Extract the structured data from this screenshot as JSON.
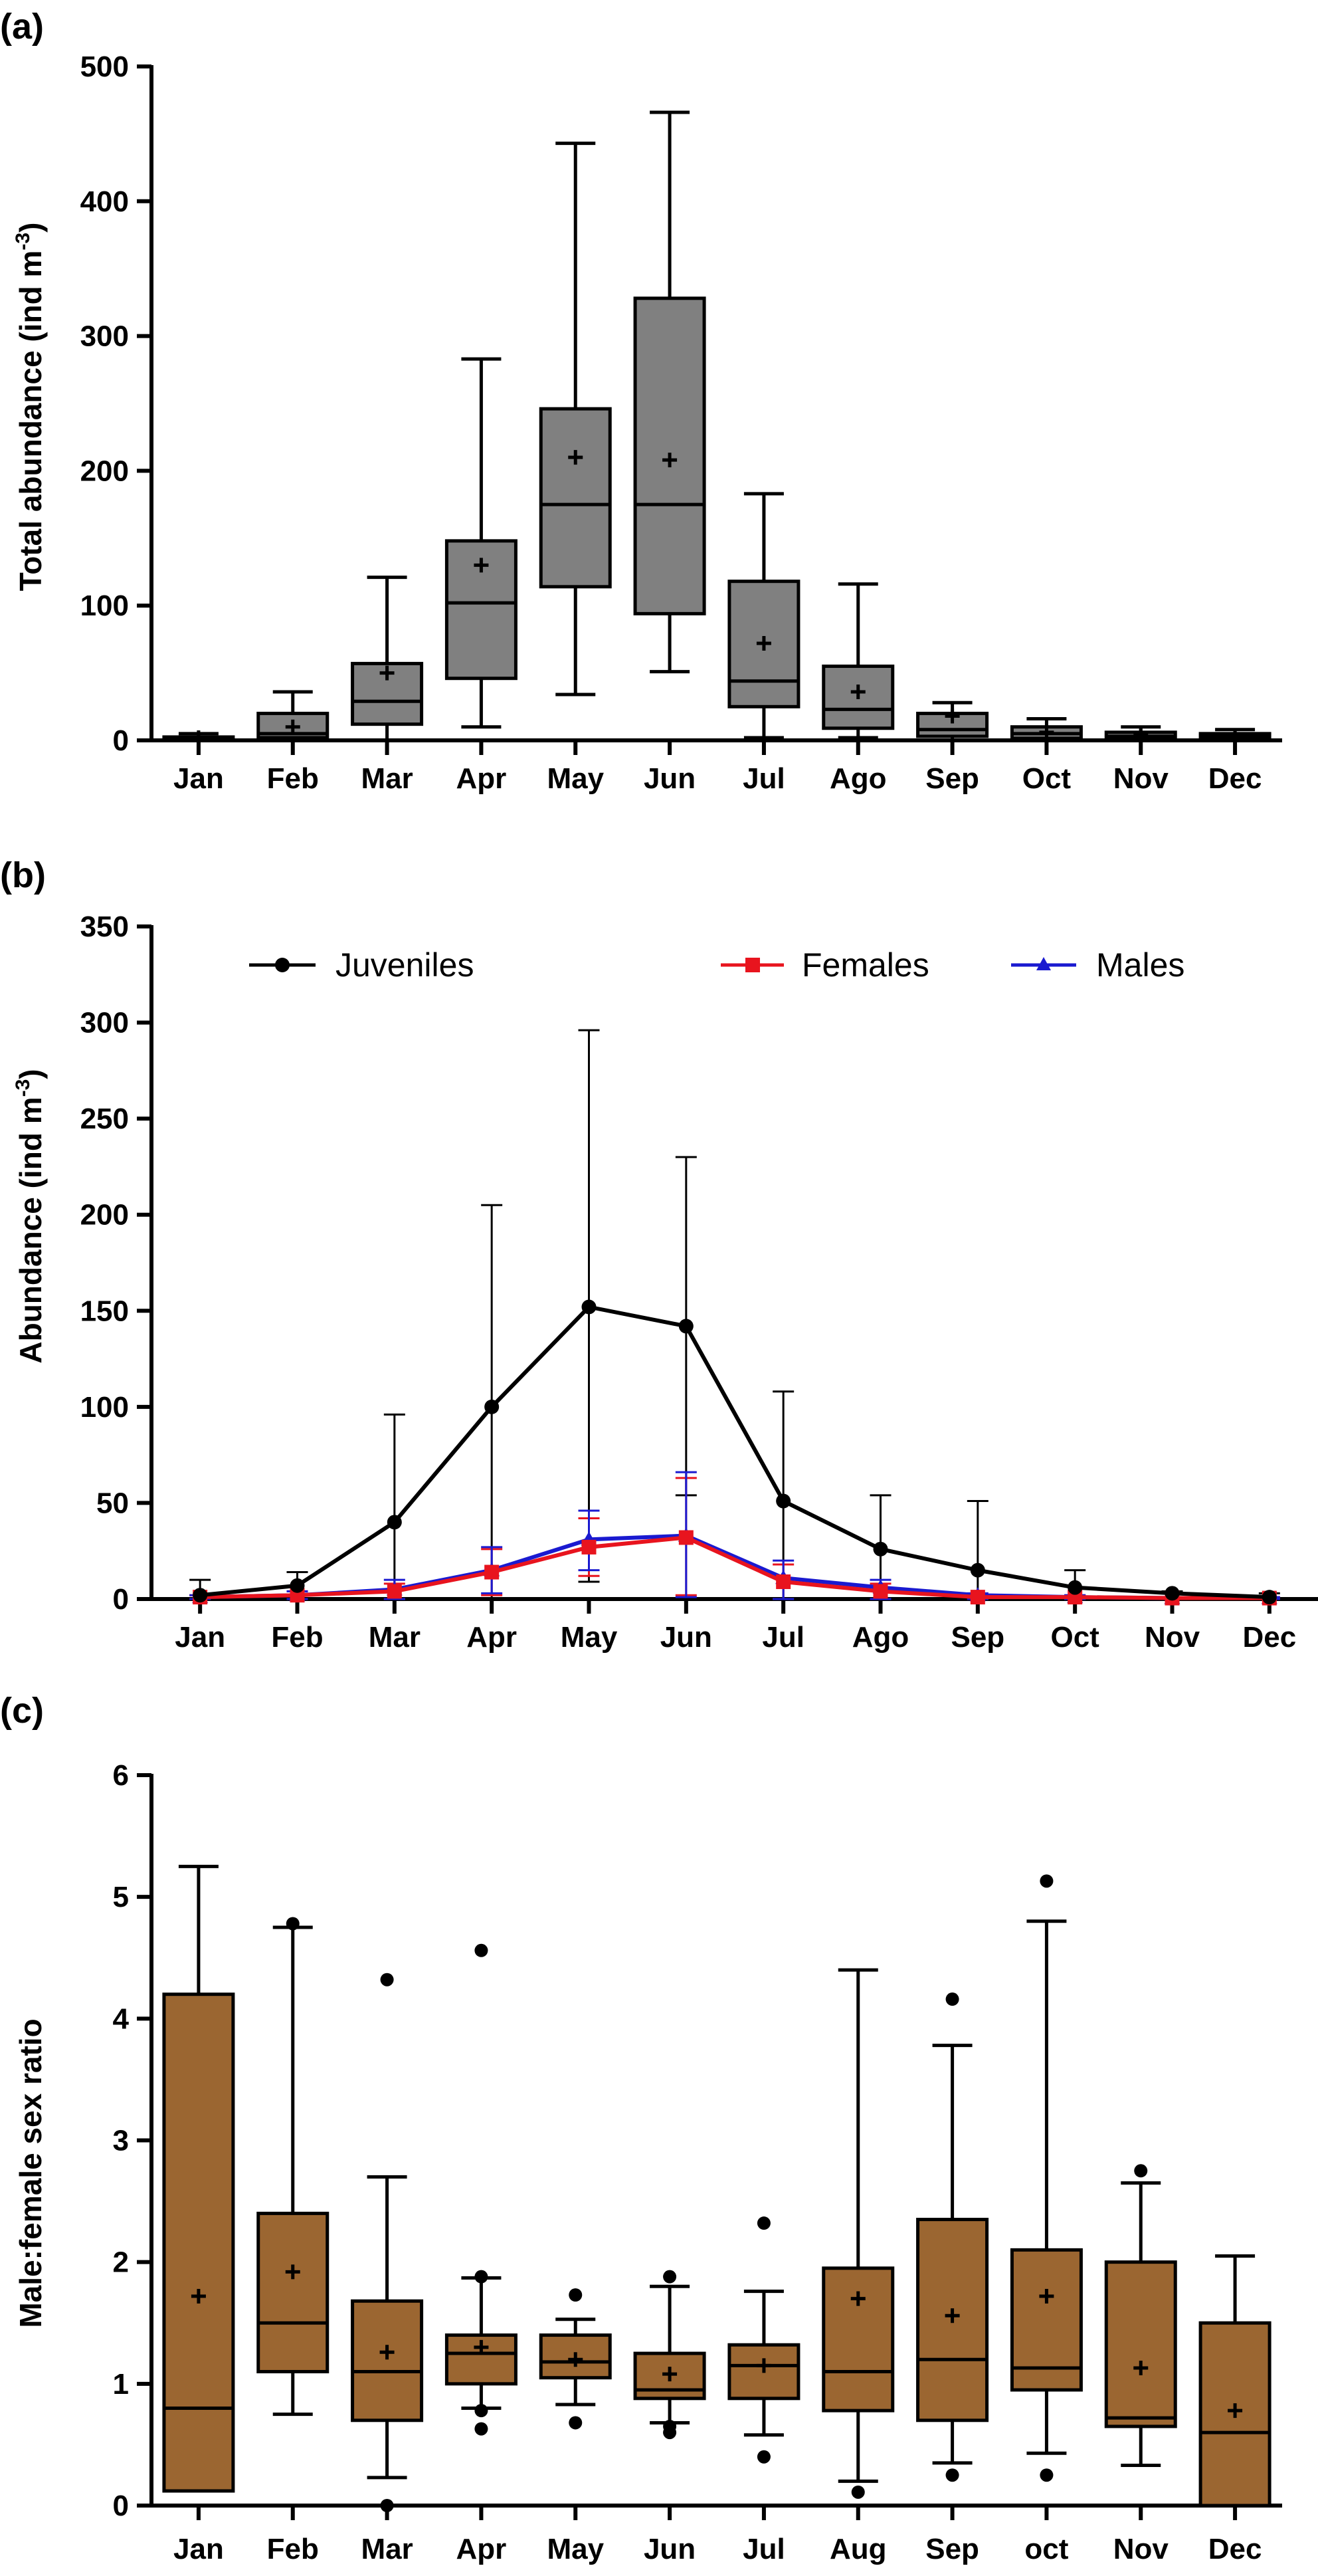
{
  "colors": {
    "box_a": "#808080",
    "box_c": "#9b6631",
    "juveniles": "#000000",
    "females": "#e8141e",
    "males": "#1a1ad0",
    "axis": "#000000"
  },
  "chart_data": [
    {
      "id": "a",
      "panel_label": "(a)",
      "type": "box",
      "ylabel_main": "Total abundance (ind m",
      "ylabel_sup": "-3",
      "ylabel_tail": ")",
      "xlabel": "",
      "ylim": [
        0,
        500
      ],
      "yticks": [
        0,
        100,
        200,
        300,
        400,
        500
      ],
      "categories": [
        "Jan",
        "Feb",
        "Mar",
        "Apr",
        "May",
        "Jun",
        "Jul",
        "Ago",
        "Sep",
        "Oct",
        "Nov",
        "Dec"
      ],
      "boxes": [
        {
          "min": 0,
          "q1": 0.5,
          "median": 1,
          "q3": 2.5,
          "max": 5,
          "mean": 2,
          "outliers": []
        },
        {
          "min": 0,
          "q1": 2,
          "median": 5,
          "q3": 20,
          "max": 36,
          "mean": 10,
          "outliers": []
        },
        {
          "min": 0,
          "q1": 12,
          "median": 29,
          "q3": 57,
          "max": 121,
          "mean": 50,
          "outliers": []
        },
        {
          "min": 10,
          "q1": 46,
          "median": 102,
          "q3": 148,
          "max": 283,
          "mean": 130,
          "outliers": []
        },
        {
          "min": 34,
          "q1": 114,
          "median": 175,
          "q3": 246,
          "max": 443,
          "mean": 210,
          "outliers": []
        },
        {
          "min": 51,
          "q1": 94,
          "median": 175,
          "q3": 328,
          "max": 466,
          "mean": 208,
          "outliers": []
        },
        {
          "min": 2,
          "q1": 25,
          "median": 44,
          "q3": 118,
          "max": 183,
          "mean": 72,
          "outliers": []
        },
        {
          "min": 2,
          "q1": 9,
          "median": 23,
          "q3": 55,
          "max": 116,
          "mean": 36,
          "outliers": []
        },
        {
          "min": 0,
          "q1": 3,
          "median": 8,
          "q3": 20,
          "max": 28,
          "mean": 18,
          "outliers": []
        },
        {
          "min": 0,
          "q1": 1.5,
          "median": 5,
          "q3": 10,
          "max": 16,
          "mean": 6,
          "outliers": []
        },
        {
          "min": 0,
          "q1": 1,
          "median": 3,
          "q3": 6,
          "max": 10,
          "mean": 4,
          "outliers": []
        },
        {
          "min": 0,
          "q1": 1,
          "median": 3,
          "q3": 5,
          "max": 8,
          "mean": 3,
          "outliers": []
        }
      ]
    },
    {
      "id": "b",
      "panel_label": "(b)",
      "type": "line",
      "ylabel_main": "Abundance (ind m",
      "ylabel_sup": "-3",
      "ylabel_tail": ")",
      "xlabel": "",
      "ylim": [
        0,
        350
      ],
      "yticks": [
        0,
        50,
        100,
        150,
        200,
        250,
        300,
        350
      ],
      "categories": [
        "Jan",
        "Feb",
        "Mar",
        "Apr",
        "May",
        "Jun",
        "Jul",
        "Ago",
        "Sep",
        "Oct",
        "Nov",
        "Dec"
      ],
      "series": [
        {
          "name": "Juveniles",
          "marker": "circle",
          "color": "#000000",
          "values": [
            2,
            7,
            40,
            100,
            152,
            142,
            51,
            26,
            15,
            6,
            3,
            1
          ],
          "err_upper": [
            10,
            14,
            96,
            205,
            296,
            230,
            108,
            54,
            51,
            15,
            4,
            3
          ],
          "err_lower": [
            0,
            0,
            0,
            0,
            9,
            54,
            0,
            0,
            0,
            0,
            0,
            0
          ]
        },
        {
          "name": "Females",
          "marker": "square",
          "color": "#e8141e",
          "values": [
            1,
            2,
            4,
            14,
            27,
            32,
            9,
            4,
            1,
            1,
            0.5,
            0.5
          ],
          "err_upper": [
            2,
            4,
            8,
            26,
            42,
            63,
            18,
            8,
            2,
            2,
            1,
            1
          ],
          "err_lower": [
            0,
            0,
            0,
            2,
            12,
            2,
            0,
            0,
            0,
            0,
            0,
            0
          ]
        },
        {
          "name": "Males",
          "marker": "triangle",
          "color": "#1a1ad0",
          "values": [
            1,
            2,
            5,
            15,
            31,
            33,
            11,
            6,
            2,
            1,
            0.5,
            0.5
          ],
          "err_upper": [
            2,
            4,
            10,
            27,
            46,
            66,
            20,
            10,
            3,
            2,
            1,
            1
          ],
          "err_lower": [
            0,
            0,
            0,
            3,
            15,
            1,
            0,
            0,
            0,
            0,
            0,
            0
          ]
        }
      ],
      "legend_placement": "top"
    },
    {
      "id": "c",
      "panel_label": "(c)",
      "type": "box",
      "ylabel_main": "Male:female sex ratio",
      "ylabel_sup": "",
      "ylabel_tail": "",
      "xlabel": "",
      "ylim": [
        0,
        6
      ],
      "yticks": [
        0,
        1,
        2,
        3,
        4,
        5,
        6
      ],
      "categories": [
        "Jan",
        "Feb",
        "Mar",
        "Apr",
        "May",
        "Jun",
        "Jul",
        "Aug",
        "Sep",
        "oct",
        "Nov",
        "Dec"
      ],
      "boxes": [
        {
          "min": 0.12,
          "q1": 0.12,
          "median": 0.8,
          "q3": 4.2,
          "max": 5.25,
          "mean": 1.72,
          "outliers": []
        },
        {
          "min": 0.75,
          "q1": 1.1,
          "median": 1.5,
          "q3": 2.4,
          "max": 4.75,
          "mean": 1.92,
          "outliers": [
            4.78
          ]
        },
        {
          "min": 0.23,
          "q1": 0.7,
          "median": 1.1,
          "q3": 1.68,
          "max": 2.7,
          "mean": 1.26,
          "outliers": [
            4.32,
            0.0
          ]
        },
        {
          "min": 0.8,
          "q1": 1.0,
          "median": 1.25,
          "q3": 1.4,
          "max": 1.87,
          "mean": 1.3,
          "outliers": [
            4.56,
            0.63,
            0.78,
            1.88
          ]
        },
        {
          "min": 0.83,
          "q1": 1.05,
          "median": 1.18,
          "q3": 1.4,
          "max": 1.53,
          "mean": 1.2,
          "outliers": [
            1.73,
            0.68
          ]
        },
        {
          "min": 0.68,
          "q1": 0.88,
          "median": 0.95,
          "q3": 1.25,
          "max": 1.8,
          "mean": 1.08,
          "outliers": [
            1.88,
            0.6,
            0.65
          ]
        },
        {
          "min": 0.58,
          "q1": 0.88,
          "median": 1.15,
          "q3": 1.32,
          "max": 1.76,
          "mean": 1.15,
          "outliers": [
            2.32,
            0.4
          ]
        },
        {
          "min": 0.2,
          "q1": 0.78,
          "median": 1.1,
          "q3": 1.95,
          "max": 4.4,
          "mean": 1.7,
          "outliers": [
            0.11
          ]
        },
        {
          "min": 0.35,
          "q1": 0.7,
          "median": 1.2,
          "q3": 2.35,
          "max": 3.78,
          "mean": 1.56,
          "outliers": [
            4.16,
            0.25
          ]
        },
        {
          "min": 0.43,
          "q1": 0.95,
          "median": 1.13,
          "q3": 2.1,
          "max": 4.8,
          "mean": 1.72,
          "outliers": [
            5.13,
            0.25
          ]
        },
        {
          "min": 0.33,
          "q1": 0.65,
          "median": 0.72,
          "q3": 2.0,
          "max": 2.65,
          "mean": 1.13,
          "outliers": [
            2.75
          ]
        },
        {
          "min": 0.0,
          "q1": 0.0,
          "median": 0.6,
          "q3": 1.5,
          "max": 2.05,
          "mean": 0.78,
          "outliers": []
        }
      ]
    }
  ]
}
